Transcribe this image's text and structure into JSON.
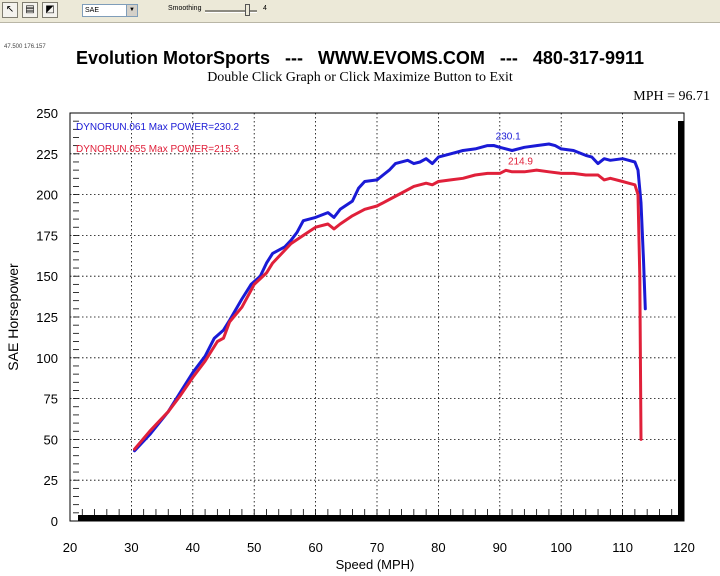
{
  "toolbar": {
    "buttons": [
      {
        "icon": "select-arrow-icon",
        "glyph": "↖"
      },
      {
        "icon": "print-icon",
        "glyph": "▤"
      },
      {
        "icon": "chart-icon",
        "glyph": "◩"
      }
    ],
    "mode_select": "SAE",
    "smoothing_label": "Smoothing",
    "smoothing_value": "4",
    "smoothing_level": 0.8
  },
  "coords_readout": "47.500  176.157",
  "header": {
    "title": "Evolution MotorSports   ---   WWW.EVOMS.COM   ---   480-317-9911",
    "subtitle": "Double Click Graph or Click Maximize Button to Exit",
    "readout": "MPH = 96.71"
  },
  "colors": {
    "run_blue": "#1a1ad6",
    "run_red": "#e0203a"
  },
  "chart_data": {
    "type": "line",
    "xlabel": "Speed (MPH)",
    "ylabel": "SAE Horsepower",
    "xlim": [
      20,
      120
    ],
    "ylim": [
      0,
      250
    ],
    "xticks": [
      20,
      30,
      40,
      50,
      60,
      70,
      80,
      90,
      100,
      110,
      120
    ],
    "yticks": [
      0,
      25,
      50,
      75,
      100,
      125,
      150,
      175,
      200,
      225,
      250
    ],
    "grid": true,
    "legend_position": "top-left",
    "series": [
      {
        "name": "DYNORUN.061  Max POWER=230.2",
        "color": "#1a1ad6",
        "peak_label": "230.1",
        "peak": [
          89,
          230.1
        ],
        "points": [
          [
            30.5,
            43
          ],
          [
            33,
            53
          ],
          [
            36,
            67
          ],
          [
            38,
            79
          ],
          [
            40,
            91
          ],
          [
            42,
            101
          ],
          [
            43.5,
            112
          ],
          [
            45,
            117
          ],
          [
            46,
            123
          ],
          [
            48,
            136
          ],
          [
            49.5,
            145
          ],
          [
            51,
            150
          ],
          [
            52,
            158
          ],
          [
            53,
            164
          ],
          [
            55,
            168
          ],
          [
            56,
            172
          ],
          [
            57,
            177
          ],
          [
            58,
            184
          ],
          [
            60,
            186
          ],
          [
            62,
            189
          ],
          [
            63,
            186
          ],
          [
            64,
            191
          ],
          [
            66,
            196
          ],
          [
            67,
            204
          ],
          [
            68,
            208
          ],
          [
            70,
            209
          ],
          [
            71,
            212
          ],
          [
            72,
            215
          ],
          [
            73,
            219
          ],
          [
            75,
            221
          ],
          [
            76,
            219
          ],
          [
            77,
            220
          ],
          [
            78,
            222
          ],
          [
            79,
            219
          ],
          [
            80,
            223
          ],
          [
            82,
            225
          ],
          [
            84,
            227
          ],
          [
            86,
            228
          ],
          [
            88,
            230
          ],
          [
            89,
            230.1
          ],
          [
            90,
            229
          ],
          [
            92,
            227
          ],
          [
            94,
            229
          ],
          [
            96,
            230
          ],
          [
            98,
            231
          ],
          [
            99,
            230
          ],
          [
            100,
            228
          ],
          [
            102,
            227
          ],
          [
            104,
            224
          ],
          [
            105,
            223
          ],
          [
            106,
            219
          ],
          [
            107,
            222
          ],
          [
            108,
            221
          ],
          [
            110,
            222
          ],
          [
            111,
            221
          ],
          [
            112,
            220
          ],
          [
            112.5,
            215
          ],
          [
            113,
            195
          ],
          [
            113.4,
            160
          ],
          [
            113.7,
            130
          ]
        ]
      },
      {
        "name": "DYNORUN.055  Max POWER=215.3",
        "color": "#e0203a",
        "peak_label": "214.9",
        "peak": [
          91,
          214.9
        ],
        "points": [
          [
            30.5,
            44
          ],
          [
            33,
            55
          ],
          [
            36,
            67
          ],
          [
            38,
            77
          ],
          [
            40,
            88
          ],
          [
            42,
            98
          ],
          [
            44,
            110
          ],
          [
            45,
            112
          ],
          [
            46,
            122
          ],
          [
            48,
            131
          ],
          [
            50,
            145
          ],
          [
            52,
            152
          ],
          [
            53,
            158
          ],
          [
            55,
            166
          ],
          [
            56,
            170
          ],
          [
            58,
            175
          ],
          [
            60,
            180
          ],
          [
            62,
            182
          ],
          [
            63,
            179
          ],
          [
            64,
            182
          ],
          [
            66,
            187
          ],
          [
            68,
            191
          ],
          [
            70,
            193
          ],
          [
            72,
            197
          ],
          [
            74,
            201
          ],
          [
            76,
            205
          ],
          [
            78,
            207
          ],
          [
            79,
            206
          ],
          [
            80,
            208
          ],
          [
            82,
            209
          ],
          [
            84,
            210
          ],
          [
            86,
            212
          ],
          [
            88,
            213
          ],
          [
            90,
            213
          ],
          [
            91,
            214.9
          ],
          [
            92,
            214
          ],
          [
            94,
            214
          ],
          [
            96,
            215
          ],
          [
            98,
            214
          ],
          [
            100,
            213
          ],
          [
            102,
            213
          ],
          [
            104,
            212
          ],
          [
            106,
            212
          ],
          [
            107,
            209
          ],
          [
            108,
            210
          ],
          [
            110,
            208
          ],
          [
            111,
            207
          ],
          [
            112,
            206
          ],
          [
            112.5,
            200
          ],
          [
            112.8,
            150
          ],
          [
            113,
            50
          ]
        ]
      }
    ]
  }
}
